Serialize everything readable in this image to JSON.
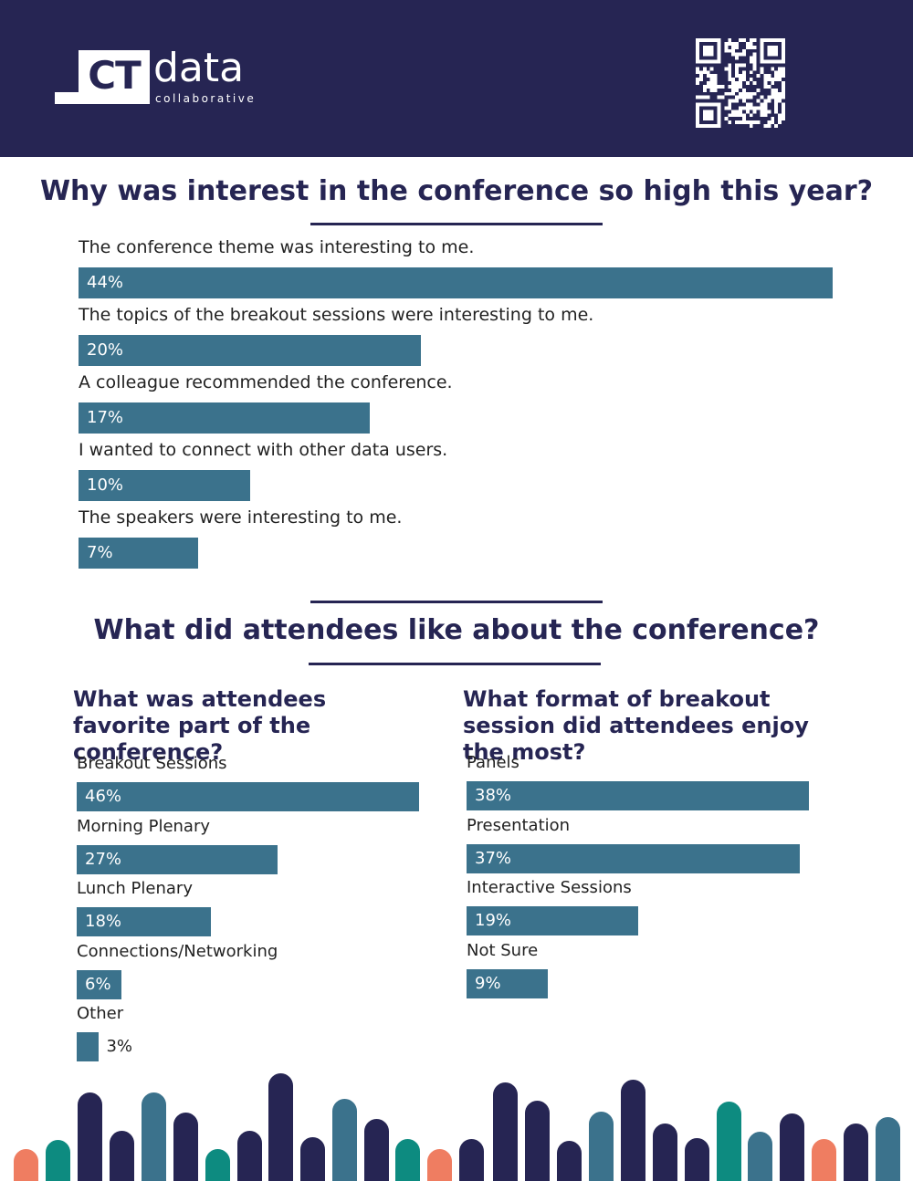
{
  "header": {
    "logo_mark": "CT",
    "logo_word": "data",
    "logo_sub": "collaborative"
  },
  "colors": {
    "navy": "#262553",
    "bar": "#3b728c",
    "teal": "#0d8b80",
    "coral": "#ef7d61",
    "steel": "#3b728c"
  },
  "icons": {
    "qr": "qr-code-icon"
  },
  "section1": {
    "title": "Why was interest in the conference so high this year?"
  },
  "section2": {
    "title": "What did attendees like about the conference?"
  },
  "chart_data": [
    {
      "type": "bar",
      "orientation": "horizontal",
      "title": "Why was interest in the conference so high this year?",
      "categories": [
        "The conference theme was interesting to me.",
        "The topics of the breakout sessions were interesting to me.",
        "A colleague recommended the conference.",
        "I wanted to connect with other data users.",
        "The speakers were interesting to me."
      ],
      "values": [
        44,
        20,
        17,
        10,
        7
      ],
      "labels": [
        "44%",
        "20%",
        "17%",
        "10%",
        "7%"
      ],
      "unit": "%"
    },
    {
      "type": "bar",
      "orientation": "horizontal",
      "title": "What was attendees favorite part of the conference?",
      "categories": [
        "Breakout Sessions",
        "Morning Plenary",
        "Lunch Plenary",
        "Connections/Networking",
        "Other"
      ],
      "values": [
        46,
        27,
        18,
        6,
        3
      ],
      "labels": [
        "46%",
        "27%",
        "18%",
        "6%",
        "3%"
      ],
      "unit": "%"
    },
    {
      "type": "bar",
      "orientation": "horizontal",
      "title": "What format of breakout session did attendees enjoy the most?",
      "categories": [
        "Panels",
        "Presentation",
        "Interactive Sessions",
        "Not Sure"
      ],
      "values": [
        38,
        37,
        19,
        9
      ],
      "labels": [
        "38%",
        "37%",
        "19%",
        "9%"
      ],
      "unit": "%"
    }
  ]
}
